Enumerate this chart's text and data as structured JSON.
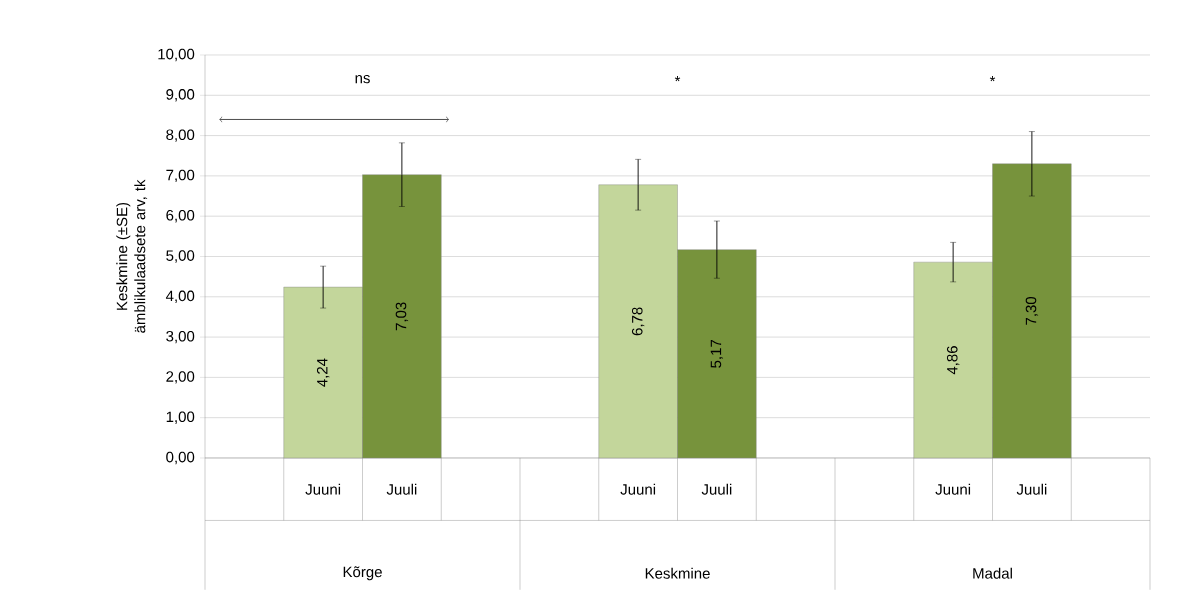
{
  "chart_data": {
    "type": "bar",
    "ylabel": "Keskmine (±SE) ämblikulaadsete arv, tk",
    "categories": [
      "Kõrge",
      "Keskmine",
      "Madal"
    ],
    "series": [
      {
        "name": "Juuni",
        "color": "#c3d69b",
        "values": [
          4.24,
          6.78,
          4.86
        ],
        "errors": [
          0.52,
          0.63,
          0.49
        ],
        "value_labels": [
          "4,24",
          "6,78",
          "4,86"
        ]
      },
      {
        "name": "Juuli",
        "color": "#77933c",
        "values": [
          7.03,
          5.17,
          7.3
        ],
        "errors": [
          0.79,
          0.71,
          0.8
        ],
        "value_labels": [
          "7,03",
          "5,17",
          "7,30"
        ]
      }
    ],
    "ylim": [
      0,
      10
    ],
    "yticks": [
      {
        "value": 0,
        "label": "0,00"
      },
      {
        "value": 1,
        "label": "1,00"
      },
      {
        "value": 2,
        "label": "2,00"
      },
      {
        "value": 3,
        "label": "3,00"
      },
      {
        "value": 4,
        "label": "4,00"
      },
      {
        "value": 5,
        "label": "5,00"
      },
      {
        "value": 6,
        "label": "6,00"
      },
      {
        "value": 7,
        "label": "7,00"
      },
      {
        "value": 8,
        "label": "8,00"
      },
      {
        "value": 9,
        "label": "9,00"
      },
      {
        "value": 10,
        "label": "10,00"
      }
    ],
    "grid": "y",
    "legend": false,
    "annotations": [
      "ns",
      "*",
      "*"
    ]
  }
}
